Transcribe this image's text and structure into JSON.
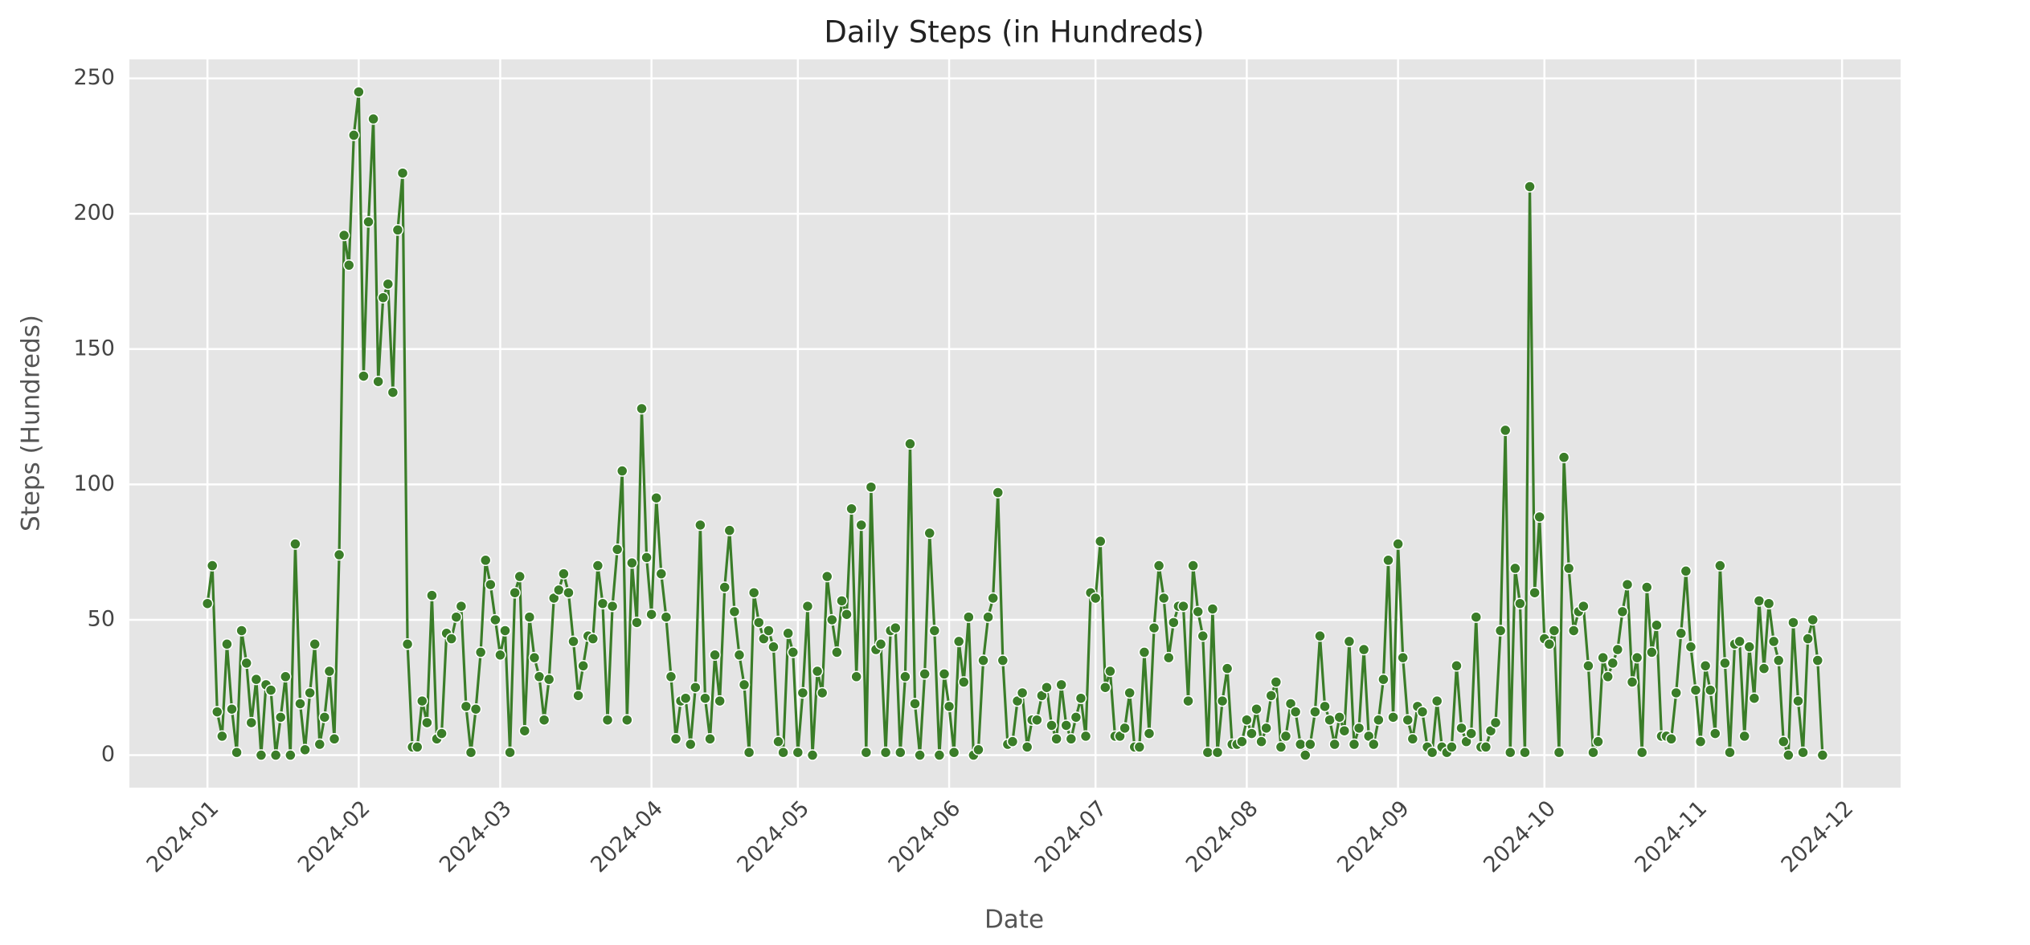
{
  "chart_data": {
    "type": "line",
    "title": "Daily Steps (in Hundreds)",
    "x_label": "Date",
    "y_label": "Steps (Hundreds)",
    "grid": true,
    "background": "#e5e5e5",
    "xlim": [
      -16,
      347
    ],
    "xticks": [
      {
        "value": 0,
        "label": "2024-01"
      },
      {
        "value": 31,
        "label": "2024-02"
      },
      {
        "value": 60,
        "label": "2024-03"
      },
      {
        "value": 91,
        "label": "2024-04"
      },
      {
        "value": 121,
        "label": "2024-05"
      },
      {
        "value": 152,
        "label": "2024-06"
      },
      {
        "value": 182,
        "label": "2024-07"
      },
      {
        "value": 213,
        "label": "2024-08"
      },
      {
        "value": 244,
        "label": "2024-09"
      },
      {
        "value": 274,
        "label": "2024-10"
      },
      {
        "value": 305,
        "label": "2024-11"
      },
      {
        "value": 335,
        "label": "2024-12"
      }
    ],
    "ylim": [
      -12,
      257
    ],
    "yticks": [
      0,
      50,
      100,
      150,
      200,
      250
    ],
    "x": [
      0,
      1,
      2,
      3,
      4,
      5,
      6,
      7,
      8,
      9,
      10,
      11,
      12,
      13,
      14,
      15,
      16,
      17,
      18,
      19,
      20,
      21,
      22,
      23,
      24,
      25,
      26,
      27,
      28,
      29,
      30,
      31,
      32,
      33,
      34,
      35,
      36,
      37,
      38,
      39,
      40,
      41,
      42,
      43,
      44,
      45,
      46,
      47,
      48,
      49,
      50,
      51,
      52,
      53,
      54,
      55,
      56,
      57,
      58,
      59,
      60,
      61,
      62,
      63,
      64,
      65,
      66,
      67,
      68,
      69,
      70,
      71,
      72,
      73,
      74,
      75,
      76,
      77,
      78,
      79,
      80,
      81,
      82,
      83,
      84,
      85,
      86,
      87,
      88,
      89,
      90,
      91,
      92,
      93,
      94,
      95,
      96,
      97,
      98,
      99,
      100,
      101,
      102,
      103,
      104,
      105,
      106,
      107,
      108,
      109,
      110,
      111,
      112,
      113,
      114,
      115,
      116,
      117,
      118,
      119,
      120,
      121,
      122,
      123,
      124,
      125,
      126,
      127,
      128,
      129,
      130,
      131,
      132,
      133,
      134,
      135,
      136,
      137,
      138,
      139,
      140,
      141,
      142,
      143,
      144,
      145,
      146,
      147,
      148,
      149,
      150,
      151,
      152,
      153,
      154,
      155,
      156,
      157,
      158,
      159,
      160,
      161,
      162,
      163,
      164,
      165,
      166,
      167,
      168,
      169,
      170,
      171,
      172,
      173,
      174,
      175,
      176,
      177,
      178,
      179,
      180,
      181,
      182,
      183,
      184,
      185,
      186,
      187,
      188,
      189,
      190,
      191,
      192,
      193,
      194,
      195,
      196,
      197,
      198,
      199,
      200,
      201,
      202,
      203,
      204,
      205,
      206,
      207,
      208,
      209,
      210,
      211,
      212,
      213,
      214,
      215,
      216,
      217,
      218,
      219,
      220,
      221,
      222,
      223,
      224,
      225,
      226,
      227,
      228,
      229,
      230,
      231,
      232,
      233,
      234,
      235,
      236,
      237,
      238,
      239,
      240,
      241,
      242,
      243,
      244,
      245,
      246,
      247,
      248,
      249,
      250,
      251,
      252,
      253,
      254,
      255,
      256,
      257,
      258,
      259,
      260,
      261,
      262,
      263,
      264,
      265,
      266,
      267,
      268,
      269,
      270,
      271,
      272,
      273,
      274,
      275,
      276,
      277,
      278,
      279,
      280,
      281,
      282,
      283,
      284,
      285,
      286,
      287,
      288,
      289,
      290,
      291,
      292,
      293,
      294,
      295,
      296,
      297,
      298,
      299,
      300,
      301,
      302,
      303,
      304,
      305,
      306,
      307,
      308,
      309,
      310,
      311,
      312,
      313,
      314,
      315,
      316,
      317,
      318,
      319,
      320,
      321,
      322,
      323,
      324,
      325,
      326,
      327,
      328,
      329,
      330,
      331
    ],
    "series": [
      {
        "color": "#3a7d28",
        "values": [
          56,
          70,
          16,
          7,
          41,
          17,
          1,
          46,
          34,
          12,
          28,
          0,
          26,
          24,
          0,
          14,
          29,
          0,
          78,
          19,
          2,
          23,
          41,
          4,
          14,
          31,
          6,
          74,
          192,
          181,
          229,
          245,
          140,
          197,
          235,
          138,
          169,
          174,
          134,
          194,
          215,
          41,
          3,
          3,
          20,
          12,
          59,
          6,
          8,
          45,
          43,
          51,
          55,
          18,
          1,
          17,
          38,
          72,
          63,
          50,
          37,
          46,
          1,
          60,
          66,
          9,
          51,
          36,
          29,
          13,
          28,
          58,
          61,
          67,
          60,
          42,
          22,
          33,
          44,
          43,
          70,
          56,
          13,
          55,
          76,
          105,
          13,
          71,
          49,
          128,
          73,
          52,
          95,
          67,
          51,
          29,
          6,
          20,
          21,
          4,
          25,
          85,
          21,
          6,
          37,
          20,
          62,
          83,
          53,
          37,
          26,
          1,
          60,
          49,
          43,
          46,
          40,
          5,
          1,
          45,
          38,
          1,
          23,
          55,
          0,
          31,
          23,
          66,
          50,
          38,
          57,
          52,
          91,
          29,
          85,
          1,
          99,
          39,
          41,
          1,
          46,
          47,
          1,
          29,
          115,
          19,
          0,
          30,
          82,
          46,
          0,
          30,
          18,
          1,
          42,
          27,
          51,
          0,
          2,
          35,
          51,
          58,
          97,
          35,
          4,
          5,
          20,
          23,
          3,
          13,
          13,
          22,
          25,
          11,
          6,
          26,
          11,
          6,
          14,
          21,
          7,
          60,
          58,
          79,
          25,
          31,
          7,
          7,
          10,
          23,
          3,
          3,
          38,
          8,
          47,
          70,
          58,
          36,
          49,
          55,
          55,
          20,
          70,
          53,
          44,
          1,
          54,
          1,
          20,
          32,
          4,
          4,
          5,
          13,
          8,
          17,
          5,
          10,
          22,
          27,
          3,
          7,
          19,
          16,
          4,
          0,
          4,
          16,
          44,
          18,
          13,
          4,
          14,
          9,
          42,
          4,
          10,
          39,
          7,
          4,
          13,
          28,
          72,
          14,
          78,
          36,
          13,
          6,
          18,
          16,
          3,
          1,
          20,
          3,
          1,
          3,
          33,
          10,
          5,
          8,
          51,
          3,
          3,
          9,
          12,
          46,
          120,
          1,
          69,
          56,
          1,
          210,
          60,
          88,
          43,
          41,
          46,
          1,
          110,
          69,
          46,
          53,
          55,
          33,
          1,
          5,
          36,
          29,
          34,
          39,
          53,
          63,
          27,
          36,
          1,
          62,
          38,
          48,
          7,
          7,
          6,
          23,
          45,
          68,
          40,
          24,
          5,
          33,
          24,
          8,
          70,
          34,
          1,
          41,
          42,
          7,
          40,
          21,
          57,
          32,
          56,
          42,
          35,
          5,
          0,
          49,
          20,
          1,
          43,
          50,
          35,
          0
        ]
      }
    ]
  }
}
